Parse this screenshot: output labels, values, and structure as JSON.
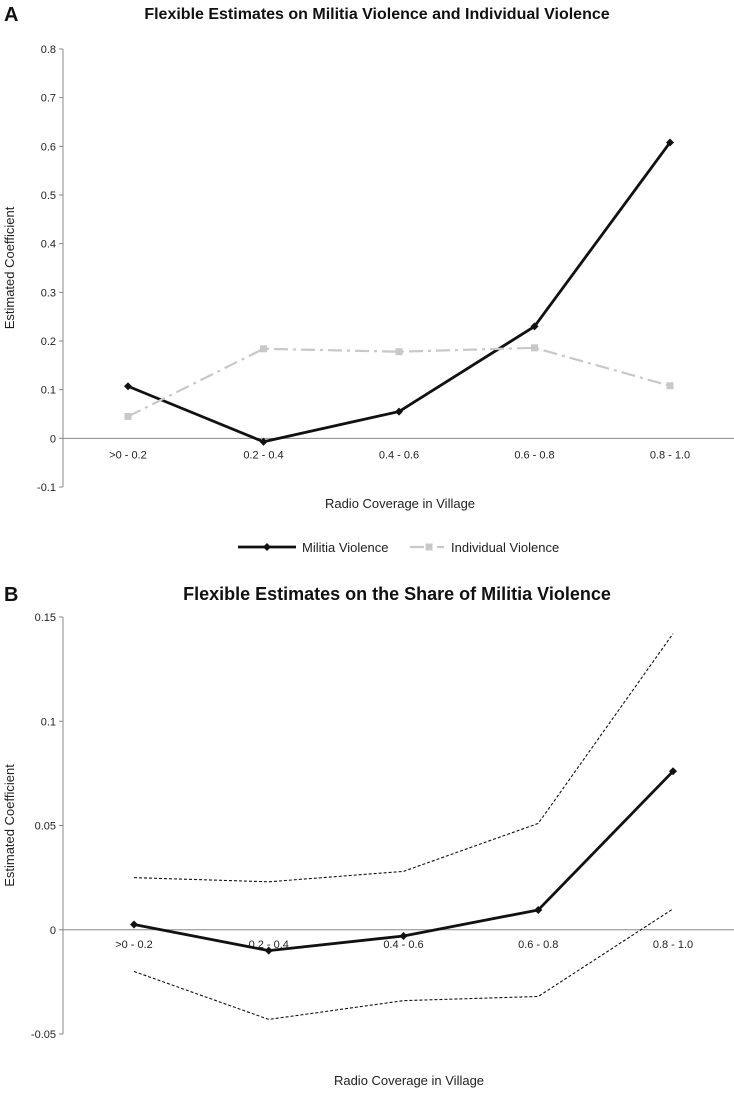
{
  "chart_data": [
    {
      "panel_label": "A",
      "type": "line",
      "title": "Flexible Estimates on Militia Violence and Individual Violence",
      "xlabel": "Radio Coverage in Village",
      "ylabel": "Estimated Coefficient",
      "categories": [
        ">0 - 0.2",
        "0.2 - 0.4",
        "0.4 - 0.6",
        "0.6 - 0.8",
        "0.8 - 1.0"
      ],
      "ylim": [
        -0.1,
        0.8
      ],
      "yticks": [
        "-0.1",
        "0",
        "0.1",
        "0.2",
        "0.3",
        "0.4",
        "0.5",
        "0.6",
        "0.7",
        "0.8"
      ],
      "legend_position": "bottom",
      "series": [
        {
          "name": "Militia Violence",
          "values": [
            0.107,
            -0.007,
            0.055,
            0.23,
            0.608
          ],
          "color": "#111111",
          "style": "solid",
          "marker": "diamond"
        },
        {
          "name": "Individual Violence",
          "values": [
            0.045,
            0.184,
            0.178,
            0.186,
            0.108
          ],
          "color": "#c8c8c8",
          "style": "dashdot",
          "marker": "square"
        }
      ]
    },
    {
      "panel_label": "B",
      "type": "line",
      "title": "Flexible Estimates on the Share of Militia Violence",
      "xlabel": "Radio Coverage in Village",
      "ylabel": "Estimated Coefficient",
      "categories": [
        ">0 - 0.2",
        "0.2 - 0.4",
        "0.4 - 0.6",
        "0.6 - 0.8",
        "0.8 - 1.0"
      ],
      "ylim": [
        -0.05,
        0.15
      ],
      "yticks": [
        "-0.05",
        "0",
        "0.05",
        "0.1",
        "0.15"
      ],
      "series": [
        {
          "values": [
            0.0025,
            -0.01,
            -0.003,
            0.0095,
            0.076
          ],
          "color": "#111111",
          "style": "solid",
          "marker": "diamond"
        },
        {
          "values": [
            0.025,
            0.023,
            0.028,
            0.051,
            0.142
          ],
          "color": "#111111",
          "style": "dotted",
          "marker": "none"
        },
        {
          "values": [
            -0.02,
            -0.043,
            -0.034,
            -0.032,
            0.01
          ],
          "color": "#111111",
          "style": "dotted",
          "marker": "none"
        }
      ]
    }
  ]
}
